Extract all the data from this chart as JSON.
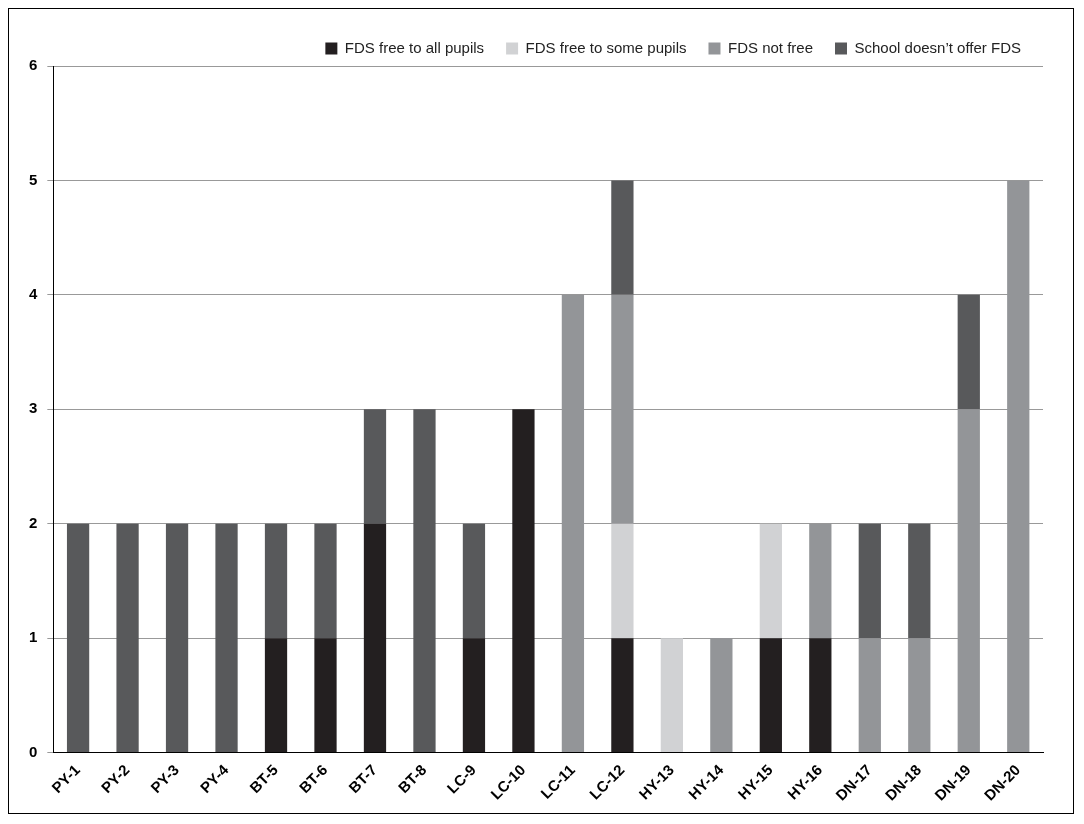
{
  "chart_data": {
    "type": "bar",
    "stacked": true,
    "categories": [
      "PY-1",
      "PY-2",
      "PY-3",
      "PY-4",
      "BT-5",
      "BT-6",
      "BT-7",
      "BT-8",
      "LC-9",
      "LC-10",
      "LC-11",
      "LC-12",
      "HY-13",
      "HY-14",
      "HY-15",
      "HY-16",
      "DN-17",
      "DN-18",
      "DN-19",
      "DN-20"
    ],
    "series": [
      {
        "name": "FDS free to all pupils",
        "color": "#231f20",
        "values": [
          0,
          0,
          0,
          0,
          1,
          1,
          2,
          0,
          1,
          3,
          0,
          1,
          0,
          0,
          1,
          1,
          0,
          0,
          0,
          0
        ]
      },
      {
        "name": "FDS free to some pupils",
        "color": "#d1d2d4",
        "values": [
          0,
          0,
          0,
          0,
          0,
          0,
          0,
          0,
          0,
          0,
          0,
          1,
          1,
          0,
          1,
          0,
          0,
          0,
          0,
          0
        ]
      },
      {
        "name": "FDS not free",
        "color": "#939598",
        "values": [
          0,
          0,
          0,
          0,
          0,
          0,
          0,
          0,
          0,
          0,
          4,
          2,
          0,
          1,
          0,
          1,
          1,
          1,
          3,
          5
        ]
      },
      {
        "name": "School doesn’t offer FDS",
        "color": "#58595b",
        "values": [
          2,
          2,
          2,
          2,
          1,
          1,
          1,
          3,
          1,
          0,
          0,
          1,
          0,
          0,
          0,
          0,
          1,
          1,
          1,
          0
        ]
      }
    ],
    "ylim": [
      0,
      6
    ],
    "yticks": [
      0,
      1,
      2,
      3,
      4,
      5,
      6
    ],
    "grid": "y",
    "legend": "top right"
  }
}
